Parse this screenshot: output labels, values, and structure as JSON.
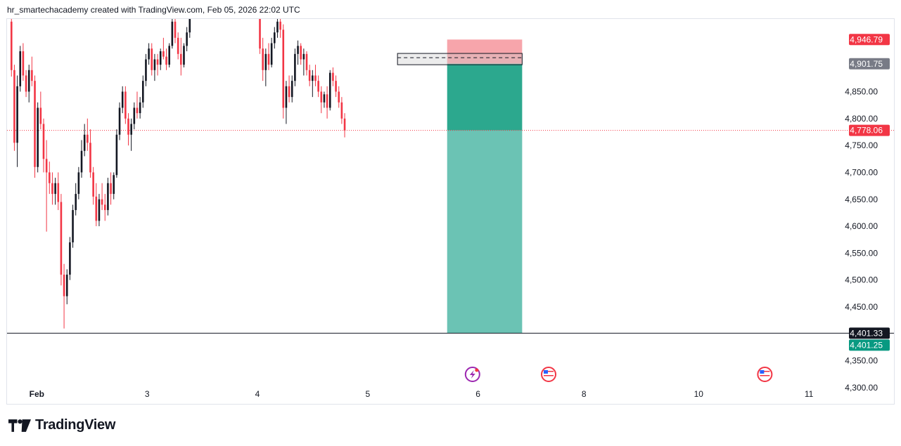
{
  "header": {
    "caption": "hr_smartechacademy created with TradingView.com, Feb 05, 2026 22:02 UTC"
  },
  "brand": {
    "name": "TradingView",
    "logo_icon": "tradingview-logo-icon"
  },
  "colors": {
    "up": "#131722",
    "down": "#f23645",
    "stop_zone": "#f7a5ab",
    "target_zone": "#2ca88e",
    "target_zone_light": "#6bc3b4",
    "current_price_line": "#f23645",
    "axis_text": "#131722"
  },
  "chart_data": {
    "type": "candlestick",
    "title": "",
    "xlabel": "",
    "ylabel": "",
    "ylim": [
      4270,
      4985
    ],
    "grid": false,
    "y_ticks": [
      "4,850.00",
      "4,800.00",
      "4,750.00",
      "4,700.00",
      "4,650.00",
      "4,600.00",
      "4,550.00",
      "4,500.00",
      "4,450.00",
      "4,350.00",
      "4,300.00"
    ],
    "y_tick_values": [
      4850,
      4800,
      4750,
      4700,
      4650,
      4600,
      4550,
      4500,
      4450,
      4350,
      4300
    ],
    "x_ticks": [
      {
        "label": "Feb",
        "t": 0.0
      },
      {
        "label": "3",
        "t": 1.0
      },
      {
        "label": "4",
        "t": 2.0
      },
      {
        "label": "5",
        "t": 3.0
      },
      {
        "label": "6",
        "t": 4.0
      },
      {
        "label": "8",
        "t": 4.96
      },
      {
        "label": "10",
        "t": 6.0
      },
      {
        "label": "11",
        "t": 7.0
      }
    ],
    "x_range": [
      -0.27,
      7.35
    ],
    "price_labels": [
      {
        "label": "4,946.79",
        "value": 4946.79,
        "role": "stop",
        "color": "#f23645"
      },
      {
        "label": "4,901.75",
        "value": 4901.75,
        "role": "entry",
        "color": "#787b86"
      },
      {
        "label": "4,778.06",
        "value": 4778.06,
        "role": "current",
        "color": "#f23645"
      },
      {
        "label": "4,401.33",
        "value": 4401.33,
        "role": "horizontal-line",
        "color": "#131722"
      },
      {
        "label": "4,401.25",
        "value": 4401.25,
        "role": "target",
        "color": "#089981"
      }
    ],
    "current_price": 4778.06,
    "horizontal_line": 4401.33,
    "position": {
      "type": "short",
      "t_start": 3.72,
      "t_end": 4.4,
      "entry": 4901.75,
      "stop": 4946.79,
      "target": 4401.25
    },
    "order_block": {
      "t_start": 3.27,
      "t_end": 4.4,
      "top": 4921,
      "bottom": 4900,
      "mid": 4913
    },
    "events": [
      {
        "t": 3.95,
        "icon": "flash-event-icon"
      },
      {
        "t": 4.64,
        "icon": "us-flag-event-icon"
      },
      {
        "t": 6.6,
        "icon": "us-flag-event-icon"
      }
    ],
    "candles": {
      "t_start": -0.23,
      "t_step": 0.0265,
      "ohlc": [
        [
          4980,
          4990,
          4878,
          4890
        ],
        [
          4890,
          4900,
          4740,
          4755
        ],
        [
          4755,
          4880,
          4710,
          4860
        ],
        [
          4860,
          4935,
          4850,
          4925
        ],
        [
          4925,
          4940,
          4870,
          4880
        ],
        [
          4880,
          4890,
          4840,
          4850
        ],
        [
          4850,
          4900,
          4830,
          4890
        ],
        [
          4890,
          4915,
          4860,
          4870
        ],
        [
          4870,
          4880,
          4690,
          4710
        ],
        [
          4710,
          4830,
          4700,
          4820
        ],
        [
          4820,
          4850,
          4780,
          4790
        ],
        [
          4790,
          4800,
          4700,
          4725
        ],
        [
          4725,
          4760,
          4590,
          4700
        ],
        [
          4700,
          4720,
          4660,
          4680
        ],
        [
          4680,
          4700,
          4640,
          4660
        ],
        [
          4660,
          4690,
          4640,
          4680
        ],
        [
          4680,
          4700,
          4630,
          4645
        ],
        [
          4645,
          4660,
          4490,
          4510
        ],
        [
          4510,
          4530,
          4410,
          4470
        ],
        [
          4470,
          4520,
          4455,
          4510
        ],
        [
          4510,
          4580,
          4500,
          4570
        ],
        [
          4570,
          4640,
          4560,
          4630
        ],
        [
          4630,
          4680,
          4620,
          4660
        ],
        [
          4660,
          4710,
          4650,
          4700
        ],
        [
          4700,
          4760,
          4690,
          4740
        ],
        [
          4740,
          4790,
          4730,
          4770
        ],
        [
          4770,
          4800,
          4740,
          4755
        ],
        [
          4755,
          4780,
          4690,
          4700
        ],
        [
          4700,
          4710,
          4640,
          4655
        ],
        [
          4655,
          4680,
          4600,
          4610
        ],
        [
          4610,
          4660,
          4600,
          4650
        ],
        [
          4650,
          4680,
          4630,
          4640
        ],
        [
          4640,
          4660,
          4610,
          4630
        ],
        [
          4630,
          4690,
          4620,
          4680
        ],
        [
          4680,
          4700,
          4640,
          4660
        ],
        [
          4660,
          4700,
          4650,
          4695
        ],
        [
          4695,
          4780,
          4690,
          4770
        ],
        [
          4770,
          4830,
          4760,
          4820
        ],
        [
          4820,
          4860,
          4810,
          4850
        ],
        [
          4850,
          4860,
          4790,
          4800
        ],
        [
          4800,
          4810,
          4750,
          4770
        ],
        [
          4770,
          4800,
          4740,
          4790
        ],
        [
          4790,
          4830,
          4780,
          4820
        ],
        [
          4820,
          4850,
          4800,
          4810
        ],
        [
          4810,
          4840,
          4800,
          4830
        ],
        [
          4830,
          4880,
          4820,
          4870
        ],
        [
          4870,
          4920,
          4860,
          4910
        ],
        [
          4910,
          4940,
          4900,
          4930
        ],
        [
          4930,
          4940,
          4880,
          4890
        ],
        [
          4890,
          4920,
          4870,
          4910
        ],
        [
          4910,
          4920,
          4880,
          4900
        ],
        [
          4900,
          4930,
          4890,
          4925
        ],
        [
          4925,
          4950,
          4910,
          4915
        ],
        [
          4915,
          4930,
          4890,
          4900
        ],
        [
          4900,
          4940,
          4895,
          4935
        ],
        [
          4935,
          4990,
          4930,
          4980
        ],
        [
          4980,
          4990,
          4940,
          4950
        ],
        [
          4950,
          4960,
          4910,
          4920
        ],
        [
          4920,
          4950,
          4880,
          4900
        ],
        [
          4900,
          4940,
          4895,
          4935
        ],
        [
          4935,
          4970,
          4925,
          4960
        ],
        [
          4960,
          4990,
          4950,
          4985
        ],
        null,
        null,
        null,
        null,
        null,
        null,
        null,
        null,
        null,
        null,
        null,
        null,
        null,
        null,
        null,
        null,
        null,
        null,
        null,
        null,
        null,
        null,
        null,
        [
          4985,
          4995,
          4920,
          4930
        ],
        [
          4930,
          4950,
          4870,
          4890
        ],
        [
          4890,
          4930,
          4860,
          4920
        ],
        [
          4920,
          4940,
          4890,
          4900
        ],
        [
          4900,
          4950,
          4895,
          4940
        ],
        [
          4940,
          4970,
          4930,
          4960
        ],
        [
          4960,
          4985,
          4950,
          4980
        ],
        [
          4980,
          4990,
          4950,
          4965
        ],
        [
          4965,
          4975,
          4800,
          4820
        ],
        [
          4820,
          4870,
          4790,
          4860
        ],
        [
          4860,
          4880,
          4830,
          4840
        ],
        [
          4840,
          4880,
          4830,
          4870
        ],
        [
          4870,
          4930,
          4860,
          4920
        ],
        [
          4920,
          4945,
          4900,
          4935
        ],
        [
          4935,
          4940,
          4900,
          4910
        ],
        [
          4910,
          4930,
          4880,
          4920
        ],
        [
          4920,
          4925,
          4880,
          4890
        ],
        [
          4890,
          4900,
          4860,
          4870
        ],
        [
          4870,
          4890,
          4840,
          4880
        ],
        [
          4880,
          4900,
          4860,
          4870
        ],
        [
          4870,
          4880,
          4840,
          4850
        ],
        [
          4850,
          4860,
          4810,
          4830
        ],
        [
          4830,
          4850,
          4820,
          4845
        ],
        [
          4845,
          4860,
          4800,
          4820
        ],
        [
          4820,
          4890,
          4815,
          4885
        ],
        [
          4885,
          4895,
          4860,
          4870
        ],
        [
          4870,
          4880,
          4840,
          4850
        ],
        [
          4850,
          4860,
          4820,
          4830
        ],
        [
          4830,
          4840,
          4790,
          4800
        ],
        [
          4800,
          4810,
          4765,
          4778
        ]
      ]
    }
  }
}
